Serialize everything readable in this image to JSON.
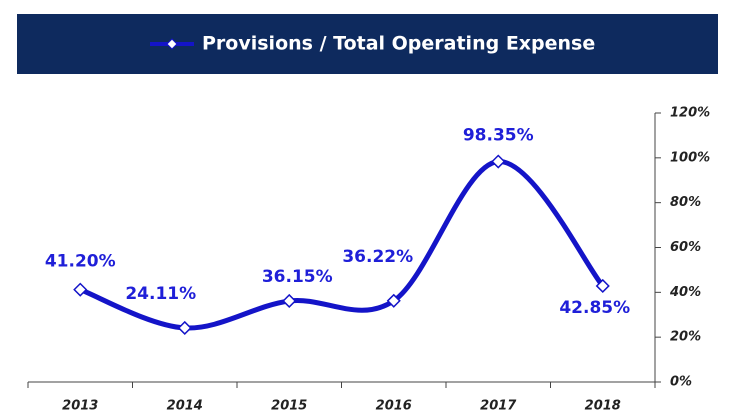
{
  "chart_data": {
    "type": "line",
    "categories": [
      "2013",
      "2014",
      "2015",
      "2016",
      "2017",
      "2018"
    ],
    "series": [
      {
        "name": "Provisions / Total Operating Expense",
        "color": "#1414c8",
        "values": [
          41.2,
          24.11,
          36.15,
          36.22,
          98.35,
          42.85
        ],
        "value_labels": [
          "41.20%",
          "24.11%",
          "36.15%",
          "36.22%",
          "98.35%",
          "42.85%"
        ]
      }
    ],
    "ylim": [
      0,
      120
    ],
    "yticks": [
      {
        "value": 0,
        "label": "0%"
      },
      {
        "value": 20,
        "label": "20%"
      },
      {
        "value": 40,
        "label": "40%"
      },
      {
        "value": 60,
        "label": "60%"
      },
      {
        "value": 80,
        "label": "80%"
      },
      {
        "value": 100,
        "label": "100%"
      },
      {
        "value": 120,
        "label": "120%"
      }
    ],
    "legend": "top",
    "banner_color": "#0e2a5e",
    "smooth": true
  }
}
